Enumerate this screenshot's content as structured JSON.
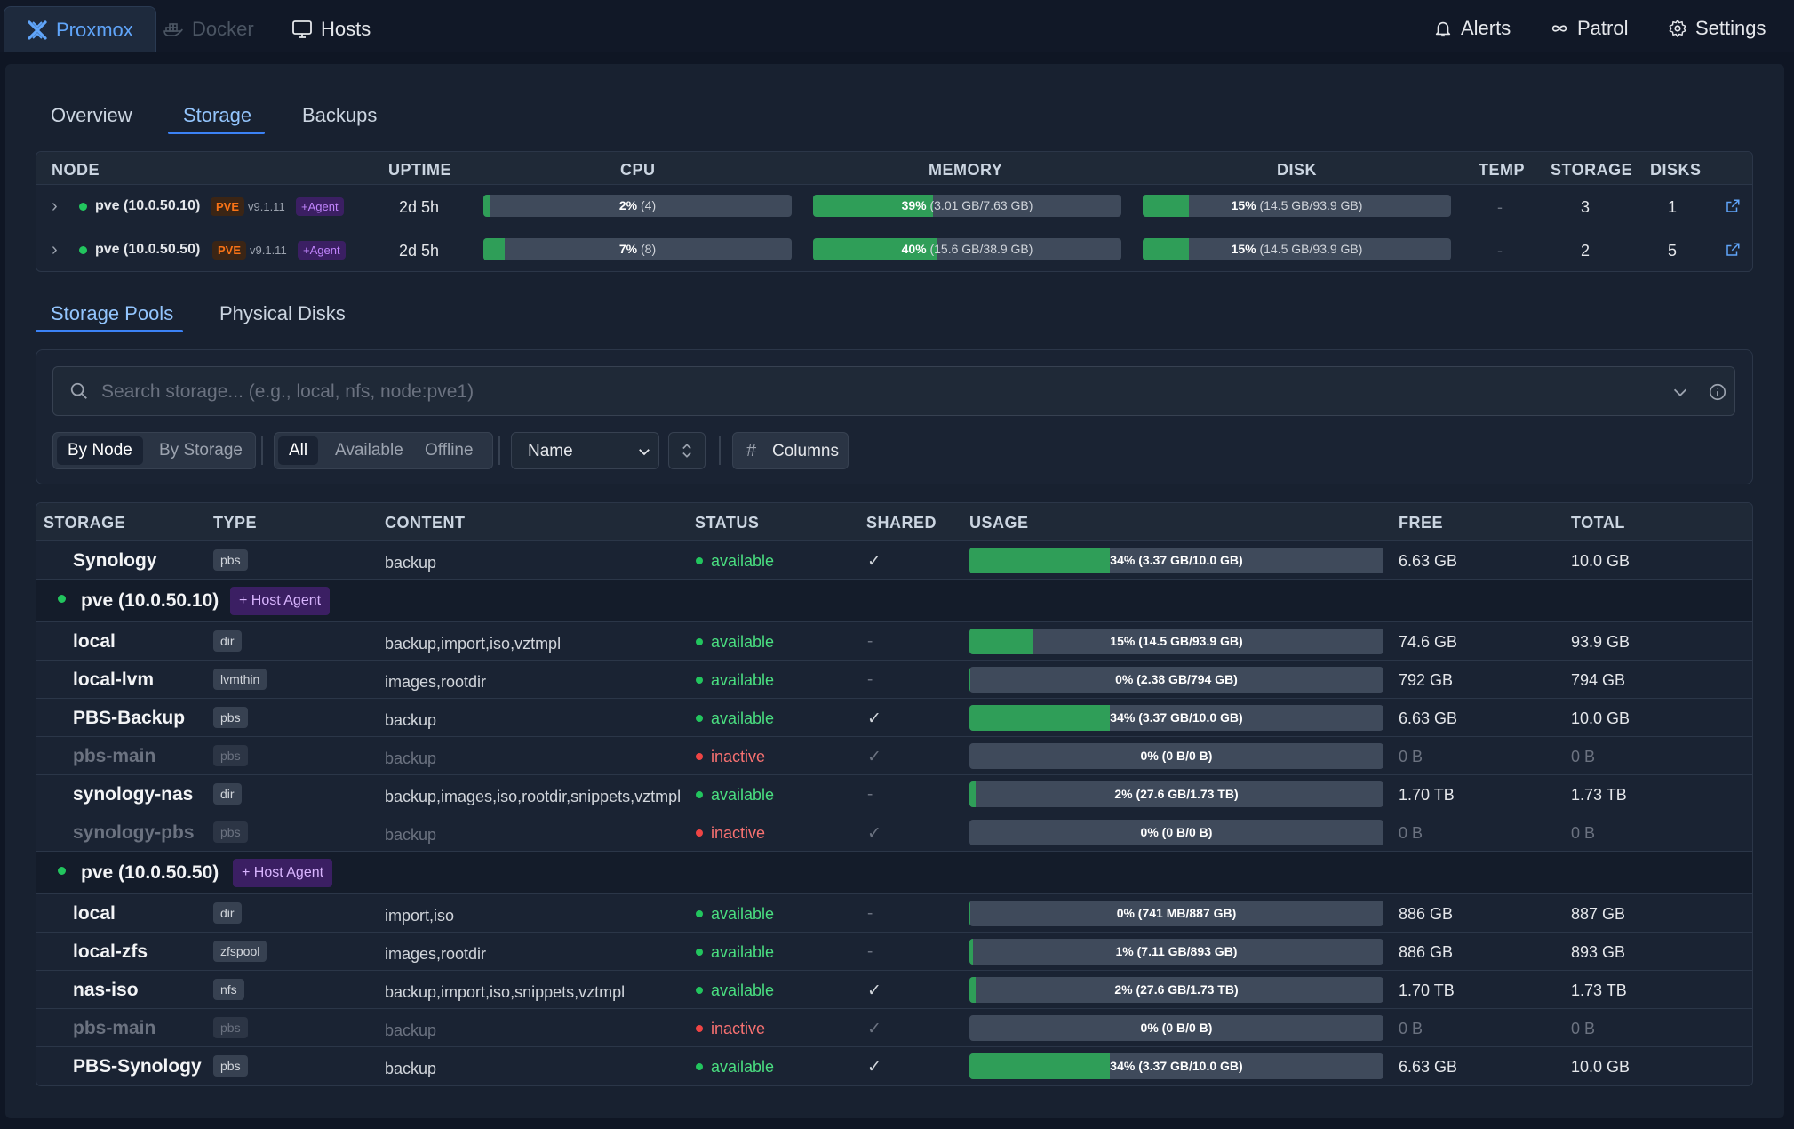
{
  "topnav": {
    "tabs": [
      {
        "label": "Proxmox",
        "icon": "proxmox-icon"
      },
      {
        "label": "Docker",
        "icon": "docker-icon"
      },
      {
        "label": "Hosts",
        "icon": "monitor-icon"
      }
    ],
    "right": [
      {
        "label": "Alerts",
        "icon": "bell-icon"
      },
      {
        "label": "Patrol",
        "icon": "infinity-icon"
      },
      {
        "label": "Settings",
        "icon": "gear-icon"
      }
    ]
  },
  "subtabs": [
    "Overview",
    "Storage",
    "Backups"
  ],
  "node_table": {
    "headers": [
      "NODE",
      "UPTIME",
      "CPU",
      "MEMORY",
      "DISK",
      "TEMP",
      "STORAGE",
      "DISKS"
    ],
    "rows": [
      {
        "name": "pve (10.0.50.10)",
        "pve": "PVE",
        "version": "v9.1.11",
        "agent": "+Agent",
        "uptime": "2d 5h",
        "cpu_pct": "2%",
        "cpu_detail": "(4)",
        "cpu_fill": 0.02,
        "mem_pct": "39%",
        "mem_detail": "(3.01 GB/7.63 GB)",
        "mem_fill": 0.39,
        "disk_pct": "15%",
        "disk_detail": "(14.5 GB/93.9 GB)",
        "disk_fill": 0.15,
        "temp": "-",
        "storage": "3",
        "disks": "1"
      },
      {
        "name": "pve (10.0.50.50)",
        "pve": "PVE",
        "version": "v9.1.11",
        "agent": "+Agent",
        "uptime": "2d 5h",
        "cpu_pct": "7%",
        "cpu_detail": "(8)",
        "cpu_fill": 0.07,
        "mem_pct": "40%",
        "mem_detail": "(15.6 GB/38.9 GB)",
        "mem_fill": 0.4,
        "disk_pct": "15%",
        "disk_detail": "(14.5 GB/93.9 GB)",
        "disk_fill": 0.15,
        "temp": "-",
        "storage": "2",
        "disks": "5"
      }
    ]
  },
  "pool_tabs": [
    "Storage Pools",
    "Physical Disks"
  ],
  "filters": {
    "search_placeholder": "Search storage... (e.g., local, nfs, node:pve1)",
    "group_by": [
      "By Node",
      "By Storage"
    ],
    "status": [
      "All",
      "Available",
      "Offline"
    ],
    "sort_value": "Name",
    "columns_label": "Columns"
  },
  "storage_table": {
    "headers": [
      "STORAGE",
      "TYPE",
      "CONTENT",
      "STATUS",
      "SHARED",
      "USAGE",
      "FREE",
      "TOTAL"
    ],
    "rows": [
      {
        "kind": "item",
        "name": "Synology",
        "type": "pbs",
        "content": "backup",
        "status": "available",
        "shared": "✓",
        "usage": "34% (3.37 GB/10.0 GB)",
        "fill": 0.34,
        "free": "6.63 GB",
        "total": "10.0 GB"
      },
      {
        "kind": "group",
        "name": "pve (10.0.50.10)",
        "agent": "+ Host Agent"
      },
      {
        "kind": "item",
        "name": "local",
        "type": "dir",
        "content": "backup,import,iso,vztmpl",
        "status": "available",
        "shared": "-",
        "usage": "15% (14.5 GB/93.9 GB)",
        "fill": 0.155,
        "free": "74.6 GB",
        "total": "93.9 GB"
      },
      {
        "kind": "item",
        "name": "local-lvm",
        "type": "lvmthin",
        "content": "images,rootdir",
        "status": "available",
        "shared": "-",
        "usage": "0% (2.38 GB/794 GB)",
        "fill": 0.003,
        "free": "792 GB",
        "total": "794 GB"
      },
      {
        "kind": "item",
        "name": "PBS-Backup",
        "type": "pbs",
        "content": "backup",
        "status": "available",
        "shared": "✓",
        "usage": "34% (3.37 GB/10.0 GB)",
        "fill": 0.34,
        "free": "6.63 GB",
        "total": "10.0 GB"
      },
      {
        "kind": "item",
        "name": "pbs-main",
        "type": "pbs",
        "content": "backup",
        "status": "inactive",
        "shared": "✓",
        "usage": "0% (0 B/0 B)",
        "fill": 0,
        "free": "0 B",
        "total": "0 B"
      },
      {
        "kind": "item",
        "name": "synology-nas",
        "type": "dir",
        "content": "backup,images,iso,rootdir,snippets,vztmpl",
        "status": "available",
        "shared": "-",
        "usage": "2% (27.6 GB/1.73 TB)",
        "fill": 0.016,
        "free": "1.70 TB",
        "total": "1.73 TB"
      },
      {
        "kind": "item",
        "name": "synology-pbs",
        "type": "pbs",
        "content": "backup",
        "status": "inactive",
        "shared": "✓",
        "usage": "0% (0 B/0 B)",
        "fill": 0,
        "free": "0 B",
        "total": "0 B"
      },
      {
        "kind": "group",
        "name": "pve (10.0.50.50)",
        "agent": "+ Host Agent"
      },
      {
        "kind": "item",
        "name": "local",
        "type": "dir",
        "content": "import,iso",
        "status": "available",
        "shared": "-",
        "usage": "0% (741 MB/887 GB)",
        "fill": 0.003,
        "free": "886 GB",
        "total": "887 GB"
      },
      {
        "kind": "item",
        "name": "local-zfs",
        "type": "zfspool",
        "content": "images,rootdir",
        "status": "available",
        "shared": "-",
        "usage": "1% (7.11 GB/893 GB)",
        "fill": 0.008,
        "free": "886 GB",
        "total": "893 GB"
      },
      {
        "kind": "item",
        "name": "nas-iso",
        "type": "nfs",
        "content": "backup,import,iso,snippets,vztmpl",
        "status": "available",
        "shared": "✓",
        "usage": "2% (27.6 GB/1.73 TB)",
        "fill": 0.016,
        "free": "1.70 TB",
        "total": "1.73 TB"
      },
      {
        "kind": "item",
        "name": "pbs-main",
        "type": "pbs",
        "content": "backup",
        "status": "inactive",
        "shared": "✓",
        "usage": "0% (0 B/0 B)",
        "fill": 0,
        "free": "0 B",
        "total": "0 B"
      },
      {
        "kind": "item",
        "name": "PBS-Synology",
        "type": "pbs",
        "content": "backup",
        "status": "available",
        "shared": "✓",
        "usage": "34% (3.37 GB/10.0 GB)",
        "fill": 0.34,
        "free": "6.63 GB",
        "total": "10.0 GB"
      }
    ]
  },
  "colors": {
    "accent": "#3b82f6",
    "bar_fill": "#2f9e58",
    "available": "#4ade80",
    "inactive": "#f87171",
    "agent_bg": "#3b1f63"
  }
}
